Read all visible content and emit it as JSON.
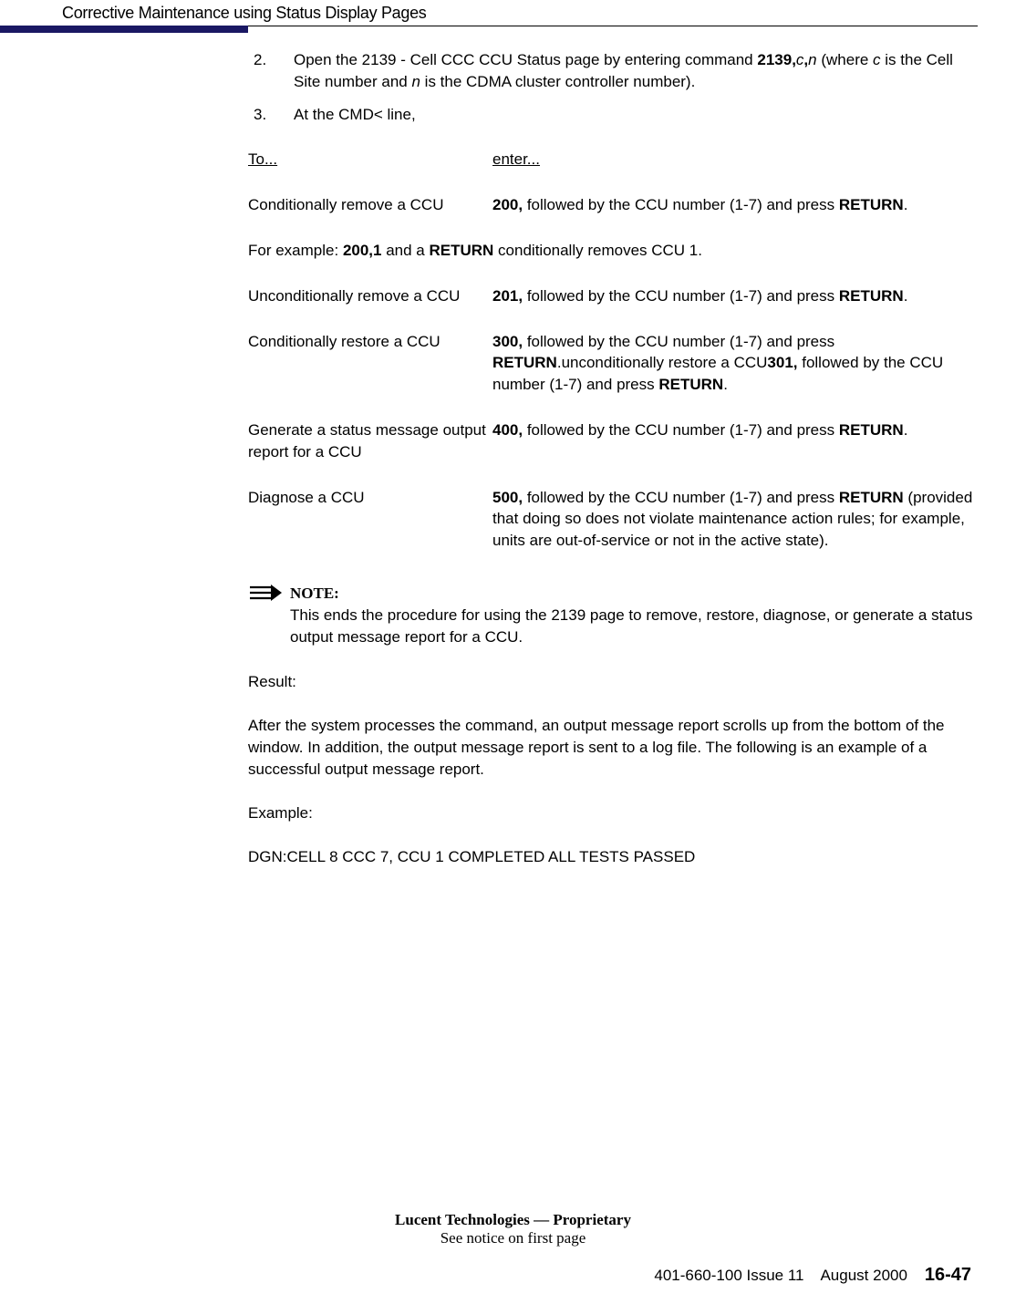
{
  "header": "Corrective Maintenance using Status Display Pages",
  "steps": [
    {
      "num": "2.",
      "html": "Open the 2139 - Cell CCC CCU Status page by entering command <b>2139,</b><i>c</i><b>,</b><i>n</i> (where <i>c</i> is the Cell Site number and <i>n</i> is the CDMA cluster controller number)."
    },
    {
      "num": "3.",
      "html": "At the CMD< line,"
    }
  ],
  "table_header": {
    "left": "To...",
    "right": "enter..."
  },
  "rows": [
    {
      "left": "Conditionally remove a CCU",
      "right": "<b>200,</b> followed by the CCU number (1-7) and press <b>RETURN</b>."
    },
    {
      "example": "For example: <b>200,1</b> and a <b>RETURN</b> conditionally removes CCU 1."
    },
    {
      "left": "Unconditionally remove a CCU",
      "right": "<b>201,</b> followed by the CCU number (1-7) and press <b>RETURN</b>."
    },
    {
      "left": "Conditionally restore a CCU",
      "right": "<b>300,</b> followed by the CCU number (1-7) and press <b>RETURN</b>.unconditionally restore a CCU<b>301,</b> followed by the CCU number (1-7) and press <b>RETURN</b>."
    },
    {
      "left": "Generate a status message output report for a CCU",
      "right": "<b>400,</b> followed by the CCU number (1-7) and press <b>RETURN</b>."
    },
    {
      "left": "Diagnose a CCU",
      "right": "<b>500,</b> followed by the CCU number (1-7) and press <b>RETURN</b> (provided that doing so does not violate maintenance action rules; for example, units are out-of-service or not in the active state)."
    }
  ],
  "note": {
    "label": "NOTE:",
    "text": "This ends the procedure for using the 2139 page to remove, restore, diagnose, or generate a status output message report for a CCU."
  },
  "result_label": "Result:",
  "result_text": "After the system processes the command, an output message report scrolls up from the bottom of the window. In addition, the output message report is sent to a log file. The following is an example of a successful output message report.",
  "example_label": "Example:",
  "example_text": "DGN:CELL 8 CCC 7, CCU 1 COMPLETED ALL TESTS PASSED",
  "footer1": "Lucent Technologies — Proprietary",
  "footer2": "See notice on first page",
  "page_foot_left": "401-660-100 Issue 11",
  "page_foot_mid": "August 2000",
  "page_foot_num": "16-47"
}
